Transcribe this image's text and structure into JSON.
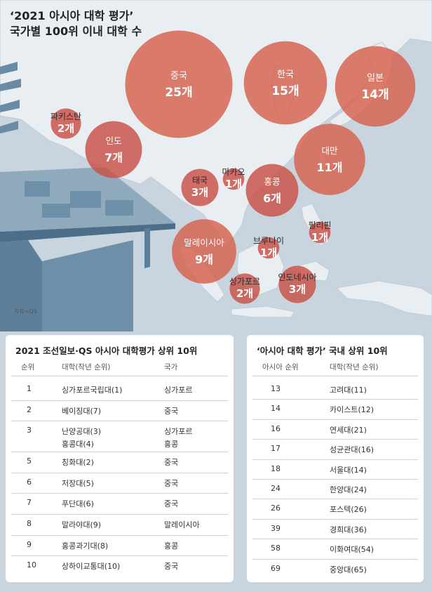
{
  "map": {
    "title_line1": "‘2021 아시아 대학 평가’",
    "title_line2": "국가별 100위 이내 대학 수",
    "source": "자료=QS"
  },
  "chart_data": {
    "type": "bubble",
    "title": "‘2021 아시아 대학 평가’ 국가별 100위 이내 대학 수",
    "unit": "개",
    "values": [
      {
        "country": "중국",
        "count": 25,
        "label": "25개"
      },
      {
        "country": "한국",
        "count": 15,
        "label": "15개"
      },
      {
        "country": "일본",
        "count": 14,
        "label": "14개"
      },
      {
        "country": "대만",
        "count": 11,
        "label": "11개"
      },
      {
        "country": "말레이시아",
        "count": 9,
        "label": "9개"
      },
      {
        "country": "인도",
        "count": 7,
        "label": "7개"
      },
      {
        "country": "홍콩",
        "count": 6,
        "label": "6개"
      },
      {
        "country": "태국",
        "count": 3,
        "label": "3개"
      },
      {
        "country": "인도네시아",
        "count": 3,
        "label": "3개"
      },
      {
        "country": "파키스탄",
        "count": 2,
        "label": "2개"
      },
      {
        "country": "싱가포르",
        "count": 2,
        "label": "2개"
      },
      {
        "country": "마카오",
        "count": 1,
        "label": "1개"
      },
      {
        "country": "브루나이",
        "count": 1,
        "label": "1개"
      },
      {
        "country": "필리핀",
        "count": 1,
        "label": "1개"
      }
    ]
  },
  "top10": {
    "title": "2021 조선일보·QS 아시아 대학평가 상위 10위",
    "headers": [
      "순위",
      "대학(작년 순위)",
      "국가"
    ],
    "rows": [
      {
        "rank": "1",
        "univ": "싱가포르국립대(1)",
        "country": "싱가포르"
      },
      {
        "rank": "2",
        "univ": "베이징대(7)",
        "country": "중국"
      },
      {
        "rank": "3",
        "univ": "난양공대(3)",
        "country": "싱가포르",
        "univ2": "홍콩대(4)",
        "country2": "홍콩"
      },
      {
        "rank": "5",
        "univ": "칭화대(2)",
        "country": "중국"
      },
      {
        "rank": "6",
        "univ": "저장대(5)",
        "country": "중국"
      },
      {
        "rank": "7",
        "univ": "푸단대(6)",
        "country": "중국"
      },
      {
        "rank": "8",
        "univ": "말라야대(9)",
        "country": "말레이시아"
      },
      {
        "rank": "9",
        "univ": "홍콩과기대(8)",
        "country": "홍콩"
      },
      {
        "rank": "10",
        "univ": "상하이교통대(10)",
        "country": "중국"
      }
    ]
  },
  "korea10": {
    "title": "‘아시아 대학 평가’ 국내 상위 10위",
    "headers": [
      "아시아 순위",
      "대학(작년 순위)"
    ],
    "rows": [
      {
        "rank": "13",
        "univ": "고려대(11)"
      },
      {
        "rank": "14",
        "univ": "카이스트(12)"
      },
      {
        "rank": "16",
        "univ": "연세대(21)"
      },
      {
        "rank": "17",
        "univ": "성균관대(16)"
      },
      {
        "rank": "18",
        "univ": "서울대(14)"
      },
      {
        "rank": "24",
        "univ": "한양대(24)"
      },
      {
        "rank": "26",
        "univ": "포스텍(26)"
      },
      {
        "rank": "39",
        "univ": "경희대(36)"
      },
      {
        "rank": "58",
        "univ": "이화여대(54)"
      },
      {
        "rank": "69",
        "univ": "중앙대(65)"
      }
    ]
  }
}
